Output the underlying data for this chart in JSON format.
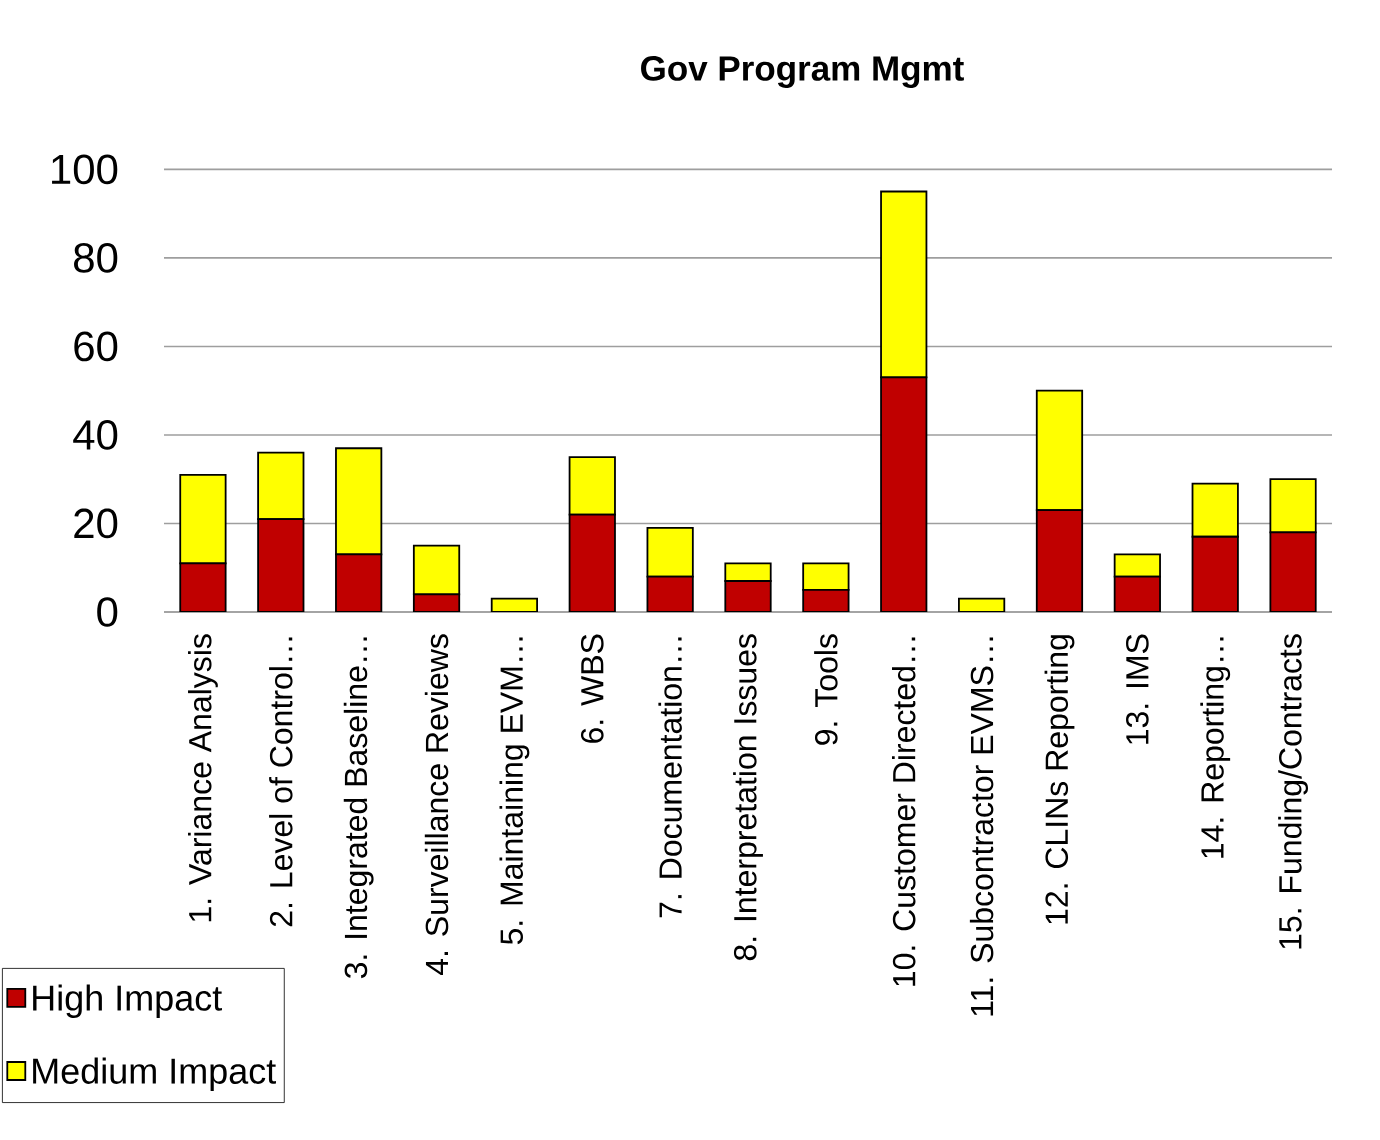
{
  "chart_data": {
    "type": "bar",
    "title": "Gov Program Mgmt",
    "stacked": true,
    "categories": [
      "1. Variance Analysis",
      "2. Level of Control…",
      "3. Integrated Baseline…",
      "4. Surveillance Reviews",
      "5. Maintaining EVM…",
      "6. WBS",
      "7. Documentation…",
      "8. Interpretation Issues",
      "9. Tools",
      "10. Customer Directed…",
      "11. Subcontractor EVMS…",
      "12. CLINs Reporting",
      "13. IMS",
      "14. Reporting…",
      "15. Funding/Contracts"
    ],
    "series": [
      {
        "name": "High Impact",
        "color": "#c00000",
        "values": [
          11,
          21,
          13,
          4,
          0,
          22,
          8,
          7,
          5,
          53,
          0,
          23,
          8,
          17,
          18
        ]
      },
      {
        "name": "Medium Impact",
        "color": "#ffff00",
        "values": [
          20,
          15,
          24,
          11,
          3,
          13,
          11,
          4,
          6,
          42,
          3,
          27,
          5,
          12,
          12
        ]
      }
    ],
    "ylim": [
      0,
      100
    ],
    "yticks": [
      0,
      20,
      40,
      60,
      80,
      100
    ],
    "grid": "y",
    "legend": "bottom left"
  }
}
